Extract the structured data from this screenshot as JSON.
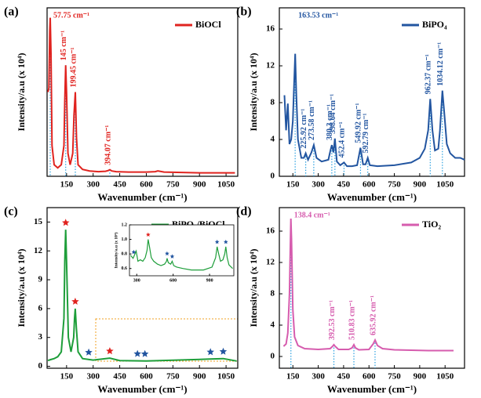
{
  "chart_data": [
    {
      "type": "line",
      "label": "(a)",
      "xlabel": "Wavenumber (cm⁻¹)",
      "ylabel": "Intensity/a.u (x 10⁴)",
      "xlim": [
        40,
        1116
      ],
      "ylim": [
        0,
        22
      ],
      "xticks": [
        150,
        300,
        450,
        600,
        750,
        900,
        1050
      ],
      "x": [
        45,
        50,
        55,
        57.75,
        62,
        68,
        80,
        100,
        120,
        135,
        140,
        145,
        150,
        158,
        170,
        185,
        192,
        199.45,
        206,
        215,
        240,
        280,
        330,
        370,
        385,
        394.07,
        405,
        430,
        500,
        600,
        650,
        665,
        700,
        800,
        900,
        1000,
        1100
      ],
      "series": [
        {
          "name": "BiOCl",
          "color": "#e0231f",
          "values": [
            11,
            11.5,
            19,
            20.7,
            16,
            4,
            1.5,
            1.1,
            1.5,
            4,
            10,
            14.5,
            11,
            3,
            1.5,
            3,
            8,
            11,
            5,
            1.5,
            0.9,
            0.7,
            0.6,
            0.65,
            0.75,
            0.85,
            0.7,
            0.6,
            0.55,
            0.55,
            0.6,
            0.7,
            0.55,
            0.5,
            0.45,
            0.45,
            0.45
          ]
        }
      ],
      "peaks": [
        {
          "value": 57.75,
          "label": "57.75 cm⁻¹"
        },
        {
          "value": 145,
          "label": "145 cm⁻¹"
        },
        {
          "value": 199.45,
          "label": "199.45 cm⁻¹"
        },
        {
          "value": 394.07,
          "label": "394.07 cm⁻¹"
        }
      ]
    },
    {
      "type": "line",
      "label": "(b)",
      "xlabel": "Wavenumber (cm⁻¹)",
      "ylabel": "Intensity/a.u (x 10⁴)",
      "xlim": [
        70,
        1165
      ],
      "ylim": [
        0,
        18.3
      ],
      "xticks": [
        150,
        300,
        450,
        600,
        750,
        900,
        1050
      ],
      "yticks": [
        0,
        4,
        8,
        12,
        16
      ],
      "x": [
        100,
        110,
        120,
        130,
        140,
        150,
        157,
        163.53,
        170,
        180,
        200,
        215,
        225.92,
        240,
        260,
        273.58,
        290,
        320,
        360,
        372,
        380.3,
        390,
        398.64,
        410,
        430,
        452.4,
        470,
        500,
        530,
        549.92,
        565,
        580,
        592.79,
        605,
        650,
        750,
        850,
        900,
        930,
        950,
        962.37,
        975,
        990,
        1010,
        1020,
        1034.12,
        1045,
        1060,
        1080,
        1110,
        1140,
        1165
      ],
      "series": [
        {
          "name": "BiPO₄",
          "color": "#2255a0",
          "values": [
            8.8,
            5,
            7.9,
            3.5,
            4,
            6,
            10,
            13.3,
            9,
            4,
            2,
            2,
            2.5,
            1.8,
            2.6,
            3.4,
            2,
            1.6,
            1.8,
            2.8,
            3.4,
            2.6,
            4.1,
            1.6,
            1.2,
            1.5,
            1.1,
            1.1,
            1.2,
            3.1,
            1.3,
            1.3,
            2,
            1.2,
            1.1,
            1.2,
            1.5,
            2,
            3,
            5,
            8.4,
            5,
            2.8,
            3,
            5,
            9.3,
            7,
            3.5,
            2.5,
            2,
            2,
            1.8
          ]
        }
      ],
      "peaks": [
        {
          "value": 163.53,
          "label": "163.53 cm⁻¹"
        },
        {
          "value": 225.92,
          "label": "225.92 cm⁻¹"
        },
        {
          "value": 273.58,
          "label": "273.58 cm⁻¹"
        },
        {
          "value": 380.3,
          "label": "380.3 cm⁻¹"
        },
        {
          "value": 398.64,
          "label": "398.64 cm⁻¹"
        },
        {
          "value": 452.4,
          "label": "452.4 cm⁻¹"
        },
        {
          "value": 549.92,
          "label": "549.92 cm⁻¹"
        },
        {
          "value": 592.79,
          "label": "592.79 cm⁻¹"
        },
        {
          "value": 962.37,
          "label": "962.37 cm⁻¹"
        },
        {
          "value": 1034.12,
          "label": "1034.12 cm⁻¹"
        }
      ]
    },
    {
      "type": "line",
      "label": "(c)",
      "xlabel": "Wavenumber (cm⁻¹)",
      "ylabel": "Intensity/a.u (x 10⁴)",
      "xlim": [
        40,
        1116
      ],
      "ylim": [
        -0.2,
        16.5
      ],
      "xticks": [
        150,
        300,
        450,
        600,
        750,
        900,
        1050
      ],
      "yticks": [
        0,
        3,
        6,
        9,
        12,
        15
      ],
      "x": [
        45,
        60,
        80,
        100,
        120,
        135,
        140,
        145,
        150,
        160,
        175,
        190,
        195,
        199,
        205,
        215,
        240,
        300,
        394,
        450,
        600,
        960,
        1034,
        1110
      ],
      "series": [
        {
          "name": "BiPO₄/BiOCl",
          "color": "#1e9e3a",
          "values": [
            0.6,
            0.7,
            0.8,
            1,
            1.5,
            5,
            11,
            14.2,
            11,
            3,
            1.5,
            3,
            5,
            6,
            4,
            1.5,
            0.8,
            0.65,
            0.85,
            0.6,
            0.55,
            0.75,
            0.8,
            0.55
          ]
        }
      ],
      "markers": [
        {
          "name": "BiOCl",
          "color": "#e0231f",
          "x": [
            145,
            199,
            394
          ]
        },
        {
          "name": "BiPO₄",
          "color": "#2255a0",
          "x": [
            275,
            550,
            592,
            962,
            1034
          ]
        }
      ]
    },
    {
      "type": "line",
      "label": "(d)",
      "xlabel": "Wavenumber (cm⁻¹)",
      "ylabel": "Intensity/a.u (x 10⁴)",
      "xlim": [
        70,
        1165
      ],
      "ylim": [
        -1.5,
        19
      ],
      "xticks": [
        150,
        300,
        450,
        600,
        750,
        900,
        1050
      ],
      "yticks": [
        0,
        4,
        8,
        12,
        16
      ],
      "x": [
        95,
        110,
        120,
        130,
        135,
        138.4,
        142,
        150,
        160,
        180,
        220,
        300,
        370,
        385,
        392.53,
        400,
        420,
        480,
        500,
        510.83,
        520,
        540,
        600,
        625,
        635.92,
        650,
        680,
        750,
        850,
        950,
        1050,
        1100
      ],
      "series": [
        {
          "name": "TiO₂",
          "color": "#d65cae",
          "values": [
            1.3,
            1.6,
            3,
            8,
            14,
            17.6,
            15,
            6,
            2.5,
            1.4,
            1,
            0.9,
            1,
            1.3,
            1.5,
            1.3,
            0.9,
            0.9,
            1.1,
            1.5,
            1.1,
            0.85,
            0.9,
            1.6,
            2.1,
            1.4,
            1,
            0.85,
            0.8,
            0.75,
            0.75,
            0.75
          ]
        }
      ],
      "peaks": [
        {
          "value": 138.4,
          "label": "138.4 cm⁻¹"
        },
        {
          "value": 392.53,
          "label": "392.53 cm⁻¹"
        },
        {
          "value": 510.83,
          "label": "510.83 cm⁻¹"
        },
        {
          "value": 635.92,
          "label": "635.92 cm⁻¹"
        }
      ]
    },
    {
      "type": "line",
      "ylabel": "Intensity/a.u (x 10⁴)",
      "xlim": [
        240,
        1100
      ],
      "ylim": [
        0.5,
        1.2
      ],
      "xticks": [
        300,
        600,
        900
      ],
      "yticks": [
        0.6,
        0.8,
        {
          "value": 1,
          "label": "1.0"
        },
        1.2
      ],
      "x": [
        250,
        270,
        280,
        295,
        310,
        330,
        350,
        370,
        385,
        394,
        405,
        420,
        440,
        470,
        500,
        530,
        545,
        550,
        560,
        580,
        592,
        605,
        630,
        680,
        750,
        850,
        920,
        950,
        962,
        975,
        990,
        1010,
        1025,
        1034,
        1045,
        1060,
        1090
      ],
      "series": [
        {
          "name": "BiPO₄/BiOCl",
          "color": "#1e9e3a",
          "values": [
            0.78,
            0.74,
            0.78,
            0.84,
            0.7,
            0.72,
            0.7,
            0.75,
            0.85,
            1,
            0.9,
            0.75,
            0.7,
            0.66,
            0.64,
            0.66,
            0.7,
            0.74,
            0.68,
            0.66,
            0.7,
            0.64,
            0.62,
            0.6,
            0.58,
            0.58,
            0.62,
            0.75,
            0.9,
            0.8,
            0.7,
            0.72,
            0.8,
            0.9,
            0.75,
            0.65,
            0.6
          ]
        }
      ],
      "markers": [
        {
          "name": "BiOCl",
          "color": "#e0231f",
          "x": [
            394
          ]
        },
        {
          "name": "BiPO₄",
          "color": "#2255a0",
          "x": [
            275,
            550,
            592,
            962,
            1034
          ]
        }
      ]
    }
  ]
}
